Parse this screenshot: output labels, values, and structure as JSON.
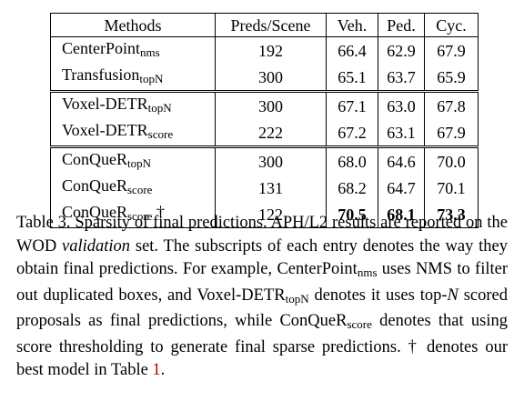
{
  "table": {
    "headers": [
      "Methods",
      "Preds/Scene",
      "Veh.",
      "Ped.",
      "Cyc."
    ],
    "rows": [
      {
        "method": "CenterPoint",
        "sub": "nms",
        "dagger": "",
        "preds": "192",
        "veh": "66.4",
        "ped": "62.9",
        "cyc": "67.9"
      },
      {
        "method": "Transfusion",
        "sub": "topN",
        "dagger": "",
        "preds": "300",
        "veh": "65.1",
        "ped": "63.7",
        "cyc": "65.9"
      },
      {
        "method": "Voxel-DETR",
        "sub": "topN",
        "dagger": "",
        "preds": "300",
        "veh": "67.1",
        "ped": "63.0",
        "cyc": "67.8"
      },
      {
        "method": "Voxel-DETR",
        "sub": "score",
        "dagger": "",
        "preds": "222",
        "veh": "67.2",
        "ped": "63.1",
        "cyc": "67.9"
      },
      {
        "method": "ConQueR",
        "sub": "topN",
        "dagger": "",
        "preds": "300",
        "veh": "68.0",
        "ped": "64.6",
        "cyc": "70.0"
      },
      {
        "method": "ConQueR",
        "sub": "score",
        "dagger": "",
        "preds": "131",
        "veh": "68.2",
        "ped": "64.7",
        "cyc": "70.1"
      },
      {
        "method": "ConQueR",
        "sub": "score",
        "dagger": "†",
        "preds": "122",
        "veh": "70.5",
        "ped": "68.1",
        "cyc": "73.3"
      }
    ]
  },
  "caption": {
    "p1": "Table 3.  Sparsity of final predictions.  APH/L2 results are reported on the WOD ",
    "italic_validation": "validation",
    "p2": " set.  The subscripts of each entry denotes the way they obtain final predictions.  For example, ",
    "m1": "CenterPoint",
    "m1_sub": "nms",
    "p3": " uses NMS to filter out duplicated boxes, and ",
    "m2": "Voxel-DETR",
    "m2_sub": "topN",
    "p4": " denotes it uses top-",
    "italic_N": "N",
    "p5": " scored proposals as final predictions, while ",
    "m3": "ConQueR",
    "m3_sub": "score",
    "p6": " denotes that using score thresholding to generate final sparse predictions.  † denotes our best model in Table ",
    "ref": "1",
    "end": "."
  }
}
